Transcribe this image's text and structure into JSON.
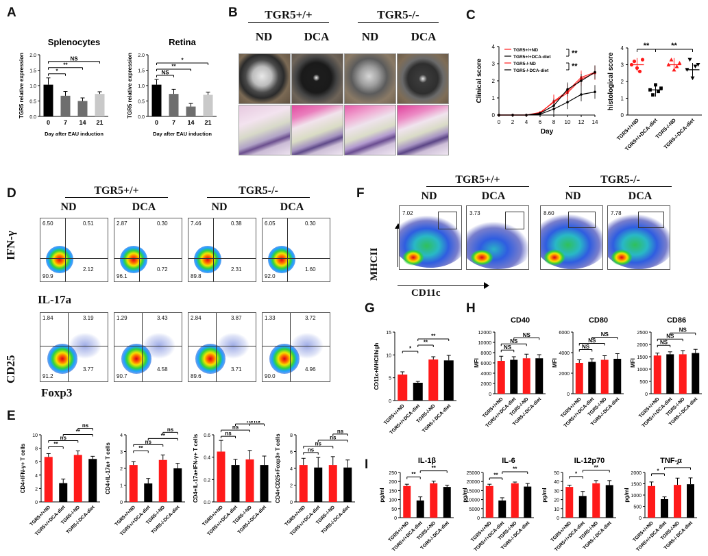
{
  "panel_labels": {
    "a": "A",
    "b": "B",
    "c": "C",
    "d": "D",
    "e": "E",
    "f": "F",
    "g": "G",
    "h": "H",
    "i": "I"
  },
  "genotypes": {
    "wt": "TGR5+/+",
    "ko": "TGR5-/-"
  },
  "treat": {
    "nd": "ND",
    "dca": "DCA"
  },
  "panelD": {
    "ylabel1": "IFN-γ",
    "xlabel1": "IL-17a",
    "ylabel2": "CD25",
    "xlabel2": "Foxp3",
    "row1": [
      {
        "ul": "6.50",
        "ur": "0.51",
        "ll": "90.9",
        "lr": "2.12"
      },
      {
        "ul": "2.87",
        "ur": "0.30",
        "ll": "96.1",
        "lr": "0.72"
      },
      {
        "ul": "7.46",
        "ur": "0.38",
        "ll": "89.8",
        "lr": "2.31"
      },
      {
        "ul": "6.05",
        "ur": "0.30",
        "ll": "92.0",
        "lr": "1.60"
      }
    ],
    "row2": [
      {
        "ul": "1.84",
        "ur": "3.19",
        "ll": "91.2",
        "lr": "3.77"
      },
      {
        "ul": "1.29",
        "ur": "3.43",
        "ll": "90.7",
        "lr": "4.58"
      },
      {
        "ul": "2.84",
        "ur": "3.87",
        "ll": "89.6",
        "lr": "3.71"
      },
      {
        "ul": "1.33",
        "ur": "3.72",
        "ll": "90.0",
        "lr": "4.96"
      }
    ]
  },
  "panelF": {
    "ylabel": "MHCII",
    "xlabel": "CD11c",
    "gates": [
      "7.02",
      "3.73",
      "8.60",
      "7.78"
    ]
  },
  "colors": {
    "wt": "#ff1a1a",
    "ko": "#000000",
    "bar_grey": "#c9c9c9",
    "bar_dark": "#6e6e6e"
  },
  "chart_data": [
    {
      "id": "A1",
      "type": "bar",
      "title": "Splenocytes",
      "ylabel": "TGR5 relative expression",
      "xlabel": "Day after EAU induction",
      "categories": [
        "0",
        "7",
        "14",
        "21"
      ],
      "values": [
        1.03,
        0.67,
        0.5,
        0.73
      ],
      "errors": [
        0.22,
        0.14,
        0.1,
        0.07
      ],
      "ylim": [
        0,
        2.0
      ],
      "yticks": [
        "0.0",
        "0.5",
        "1.0",
        "1.5",
        "2.0"
      ],
      "colors": [
        "#000000",
        "#6e6e6e",
        "#6e6e6e",
        "#c9c9c9"
      ],
      "sig": [
        {
          "a": 0,
          "b": 1,
          "label": "*"
        },
        {
          "a": 0,
          "b": 2,
          "label": "**"
        },
        {
          "a": 0,
          "b": 3,
          "label": "NS"
        }
      ]
    },
    {
      "id": "A2",
      "type": "bar",
      "title": "Retina",
      "ylabel": "TGR5 relative expression",
      "xlabel": "Day after EAU induction",
      "categories": [
        "0",
        "7",
        "14",
        "21"
      ],
      "values": [
        1.03,
        0.73,
        0.32,
        0.7
      ],
      "errors": [
        0.17,
        0.15,
        0.1,
        0.09
      ],
      "ylim": [
        0,
        2.0
      ],
      "yticks": [
        "0.0",
        "0.5",
        "1.0",
        "1.5",
        "2.0"
      ],
      "colors": [
        "#000000",
        "#6e6e6e",
        "#6e6e6e",
        "#c9c9c9"
      ],
      "sig": [
        {
          "a": 0,
          "b": 1,
          "label": "NS"
        },
        {
          "a": 0,
          "b": 2,
          "label": "**"
        },
        {
          "a": 0,
          "b": 3,
          "label": "*"
        }
      ]
    },
    {
      "id": "C1",
      "type": "line",
      "ylabel": "Clinical score",
      "xlabel": "Day",
      "x": [
        0,
        2,
        4,
        6,
        8,
        10,
        12,
        14
      ],
      "xticks": [
        "0",
        "2",
        "4",
        "6",
        "8",
        "10",
        "12",
        "14"
      ],
      "ylim": [
        0,
        4
      ],
      "yticks": [
        "0",
        "1",
        "2",
        "3",
        "4"
      ],
      "series": [
        {
          "name": "TGR5+/+ND",
          "color": "#ff1a1a",
          "values": [
            0,
            0,
            0,
            0.1,
            0.8,
            1.4,
            2.2,
            2.5
          ]
        },
        {
          "name": "TGR5+/+DCA-diet",
          "color": "#000000",
          "values": [
            0,
            0,
            0,
            0.05,
            0.35,
            0.75,
            1.2,
            1.35
          ]
        },
        {
          "name": "TGR5-/-ND",
          "color": "#ff1a1a",
          "values": [
            0,
            0,
            0,
            0.15,
            0.75,
            1.3,
            2.1,
            2.45
          ]
        },
        {
          "name": "TGR5-/-DCA-diet",
          "color": "#000000",
          "values": [
            0,
            0,
            0,
            0.1,
            0.55,
            1.5,
            2.0,
            2.5
          ]
        }
      ],
      "legend": [
        "TGR5+/+ND",
        "TGR5+/+DCA-diet",
        "TGR5-/-ND",
        "TGR5-/-DCA-diet"
      ],
      "sig": [
        "**",
        "**"
      ]
    },
    {
      "id": "C2",
      "type": "scatter",
      "ylabel": "histological score",
      "categories": [
        "TGR5+/+ND",
        "TGR5+/+DCA-diet",
        "TGR5-/-ND",
        "TGR5-/-DCA-diet"
      ],
      "ylim": [
        0,
        4
      ],
      "yticks": [
        "0",
        "1",
        "2",
        "3",
        "4"
      ],
      "colors": [
        "#ff1a1a",
        "#000000",
        "#ff1a1a",
        "#000000"
      ],
      "points": [
        [
          3.0,
          3.2,
          2.8,
          2.6,
          3.3
        ],
        [
          1.5,
          1.2,
          1.8,
          1.4,
          1.6
        ],
        [
          3.0,
          3.3,
          2.7,
          2.9,
          3.1
        ],
        [
          2.7,
          3.3,
          2.2,
          2.9,
          3.0
        ]
      ],
      "means": [
        3.0,
        1.5,
        3.0,
        2.7
      ],
      "sig": [
        {
          "a": 0,
          "b": 1,
          "label": "**"
        },
        {
          "a": 1,
          "b": 3,
          "label": "**"
        }
      ]
    },
    {
      "id": "E1",
      "type": "bar",
      "ylabel": "CD4+IFN-γ+ T cells",
      "categories": [
        "TGR5+/+ND",
        "TGR5+/+DCA-diet",
        "TGR5-/-ND",
        "TGR5-/-DCA-diet"
      ],
      "values": [
        6.7,
        2.8,
        7.0,
        6.4
      ],
      "errors": [
        0.5,
        0.6,
        0.6,
        0.4
      ],
      "ylim": [
        0,
        10
      ],
      "yticks": [
        "0",
        "2",
        "4",
        "6",
        "8",
        "10"
      ],
      "colors": [
        "#ff1a1a",
        "#000000",
        "#ff1a1a",
        "#000000"
      ],
      "sig": [
        {
          "a": 0,
          "b": 1,
          "label": "**"
        },
        {
          "a": 0,
          "b": 2,
          "label": "ns"
        },
        {
          "a": 1,
          "b": 3,
          "label": "**"
        },
        {
          "a": 2,
          "b": 3,
          "label": "ns"
        }
      ]
    },
    {
      "id": "E2",
      "type": "bar",
      "ylabel": "CD4+IL-17a+ T cells",
      "categories": [
        "TGR5+/+ND",
        "TGR5+/+DCA-diet",
        "TGR5-/-ND",
        "TGR5-/-DCA-diet"
      ],
      "values": [
        2.2,
        1.1,
        2.5,
        2.0
      ],
      "errors": [
        0.2,
        0.3,
        0.3,
        0.3
      ],
      "ylim": [
        0,
        4
      ],
      "yticks": [
        "0",
        "1",
        "2",
        "3",
        "4"
      ],
      "colors": [
        "#ff1a1a",
        "#000000",
        "#ff1a1a",
        "#000000"
      ],
      "sig": [
        {
          "a": 0,
          "b": 1,
          "label": "**"
        },
        {
          "a": 0,
          "b": 2,
          "label": "ns"
        },
        {
          "a": 1,
          "b": 3,
          "label": "**"
        },
        {
          "a": 2,
          "b": 3,
          "label": "ns"
        }
      ]
    },
    {
      "id": "E3",
      "type": "bar",
      "ylabel": "CD4+IL-17a+IFN-γ+ T cells",
      "categories": [
        "TGR5+/+ND",
        "TGR5+/+DCA-diet",
        "TGR5-/-ND",
        "TGR5-/-DCA-diet"
      ],
      "values": [
        0.45,
        0.33,
        0.38,
        0.33
      ],
      "errors": [
        0.1,
        0.05,
        0.08,
        0.08
      ],
      "ylim": [
        0,
        0.6
      ],
      "yticks": [
        "0.0",
        "0.2",
        "0.4",
        "0.6"
      ],
      "colors": [
        "#ff1a1a",
        "#000000",
        "#ff1a1a",
        "#000000"
      ],
      "sig": [
        {
          "a": 0,
          "b": 1,
          "label": "ns"
        },
        {
          "a": 0,
          "b": 2,
          "label": "ns"
        },
        {
          "a": 1,
          "b": 3,
          "label": "ns"
        },
        {
          "a": 2,
          "b": 3,
          "label": "ns"
        }
      ]
    },
    {
      "id": "E4",
      "type": "bar",
      "ylabel": "CD4+CD25+Foxp3+ T cells",
      "categories": [
        "TGR5+/+ND",
        "TGR5+/+DCA-diet",
        "TGR5-/-ND",
        "TGR5-/-DCA-diet"
      ],
      "values": [
        4.4,
        4.1,
        4.4,
        4.1
      ],
      "errors": [
        0.8,
        1.2,
        1.0,
        0.9
      ],
      "ylim": [
        0,
        8
      ],
      "yticks": [
        "0",
        "2",
        "4",
        "6",
        "8"
      ],
      "colors": [
        "#ff1a1a",
        "#000000",
        "#ff1a1a",
        "#000000"
      ],
      "sig": [
        {
          "a": 0,
          "b": 1,
          "label": "ns"
        },
        {
          "a": 0,
          "b": 2,
          "label": "ns"
        },
        {
          "a": 1,
          "b": 3,
          "label": "ns"
        },
        {
          "a": 2,
          "b": 3,
          "label": "ns"
        }
      ]
    },
    {
      "id": "G",
      "type": "bar",
      "ylabel": "CD11c+MHCIIhigh",
      "categories": [
        "TGR5+/+ND",
        "TGR5+/+DCA-diet",
        "TGR5-/-ND",
        "TGR5-/-DCA-diet"
      ],
      "values": [
        5.7,
        3.9,
        9.0,
        8.8
      ],
      "errors": [
        0.6,
        0.3,
        0.6,
        1.1
      ],
      "ylim": [
        0,
        15
      ],
      "yticks": [
        "0",
        "5",
        "10",
        "15"
      ],
      "colors": [
        "#ff1a1a",
        "#000000",
        "#ff1a1a",
        "#000000"
      ],
      "sig": [
        {
          "a": 0,
          "b": 1,
          "label": "*"
        },
        {
          "a": 1,
          "b": 2,
          "label": "**"
        },
        {
          "a": 1,
          "b": 3,
          "label": "**"
        }
      ]
    },
    {
      "id": "H1",
      "type": "bar",
      "title": "CD40",
      "ylabel": "MFI",
      "categories": [
        "TGR5+/+ND",
        "TGR5+/+DCA-diet",
        "TGR5-/-ND",
        "TGR5-/-DCA-diet"
      ],
      "values": [
        6400,
        6600,
        6900,
        6900
      ],
      "errors": [
        900,
        600,
        800,
        700
      ],
      "ylim": [
        0,
        12000
      ],
      "yticks": [
        "0",
        "2000",
        "4000",
        "6000",
        "8000",
        "10000",
        "12000"
      ],
      "colors": [
        "#ff1a1a",
        "#000000",
        "#ff1a1a",
        "#000000"
      ],
      "sig": [
        {
          "a": 0,
          "b": 1,
          "label": "NS"
        },
        {
          "a": 0,
          "b": 2,
          "label": "NS"
        },
        {
          "a": 1,
          "b": 3,
          "label": "NS"
        }
      ]
    },
    {
      "id": "H2",
      "type": "bar",
      "title": "CD80",
      "ylabel": "MFI",
      "categories": [
        "TGR5+/+ND",
        "TGR5+/+DCA-diet",
        "TGR5-/-ND",
        "TGR5-/-DCA-diet"
      ],
      "values": [
        3000,
        3100,
        3300,
        3400
      ],
      "errors": [
        300,
        300,
        400,
        500
      ],
      "ylim": [
        0,
        6000
      ],
      "yticks": [
        "0",
        "2000",
        "4000",
        "6000"
      ],
      "colors": [
        "#ff1a1a",
        "#000000",
        "#ff1a1a",
        "#000000"
      ],
      "sig": [
        {
          "a": 0,
          "b": 1,
          "label": "NS"
        },
        {
          "a": 0,
          "b": 2,
          "label": "NS"
        },
        {
          "a": 1,
          "b": 3,
          "label": "NS"
        }
      ]
    },
    {
      "id": "H3",
      "type": "bar",
      "title": "CD86",
      "ylabel": "MFI",
      "categories": [
        "TGR5+/+ND",
        "TGR5+/+DCA-diet",
        "TGR5-/-ND",
        "TGR5-/-DCA-diet"
      ],
      "values": [
        1550,
        1600,
        1600,
        1650
      ],
      "errors": [
        100,
        100,
        150,
        150
      ],
      "ylim": [
        0,
        2500
      ],
      "yticks": [
        "0",
        "500",
        "1000",
        "1500",
        "2000",
        "2500"
      ],
      "colors": [
        "#ff1a1a",
        "#000000",
        "#ff1a1a",
        "#000000"
      ],
      "sig": [
        {
          "a": 0,
          "b": 1,
          "label": "NS"
        },
        {
          "a": 0,
          "b": 2,
          "label": "NS"
        },
        {
          "a": 1,
          "b": 3,
          "label": "NS"
        }
      ]
    },
    {
      "id": "I1",
      "type": "bar",
      "title": "IL-1β",
      "ylabel": "pg/ml",
      "categories": [
        "TGR5+/+ND",
        "TGR5+/+DCA-diet",
        "TGR5-/-ND",
        "TGR5-/-DCA-diet"
      ],
      "values": [
        175,
        95,
        190,
        170
      ],
      "errors": [
        10,
        20,
        12,
        10
      ],
      "ylim": [
        0,
        250
      ],
      "yticks": [
        "0",
        "50",
        "100",
        "150",
        "200",
        "250"
      ],
      "colors": [
        "#ff1a1a",
        "#000000",
        "#ff1a1a",
        "#000000"
      ],
      "sig": [
        {
          "a": 0,
          "b": 1,
          "label": "**"
        },
        {
          "a": 1,
          "b": 3,
          "label": "**"
        }
      ]
    },
    {
      "id": "I2",
      "type": "bar",
      "title": "IL-6",
      "ylabel": "pg/ml",
      "categories": [
        "TGR5+/+ND",
        "TGR5+/+DCA-diet",
        "TGR5-/-ND",
        "TGR5-/-DCA-diet"
      ],
      "values": [
        17500,
        9500,
        19000,
        17200
      ],
      "errors": [
        1000,
        1500,
        700,
        1700
      ],
      "ylim": [
        0,
        25000
      ],
      "yticks": [
        "0",
        "5000",
        "10000",
        "15000",
        "20000",
        "25000"
      ],
      "colors": [
        "#ff1a1a",
        "#000000",
        "#ff1a1a",
        "#000000"
      ],
      "sig": [
        {
          "a": 0,
          "b": 1,
          "label": "**"
        },
        {
          "a": 1,
          "b": 3,
          "label": "**"
        }
      ]
    },
    {
      "id": "I3",
      "type": "bar",
      "title": "IL-12p70",
      "ylabel": "pg/ml",
      "categories": [
        "TGR5+/+ND",
        "TGR5+/+DCA-diet",
        "TGR5-/-ND",
        "TGR5-/-DCA-diet"
      ],
      "values": [
        34,
        24,
        38,
        36
      ],
      "errors": [
        2,
        5,
        3,
        5
      ],
      "ylim": [
        0,
        50
      ],
      "yticks": [
        "0",
        "10",
        "20",
        "30",
        "40",
        "50"
      ],
      "colors": [
        "#ff1a1a",
        "#000000",
        "#ff1a1a",
        "#000000"
      ],
      "sig": [
        {
          "a": 0,
          "b": 1,
          "label": "*"
        },
        {
          "a": 1,
          "b": 3,
          "label": "**"
        }
      ]
    },
    {
      "id": "I4",
      "type": "bar",
      "title": "TNF-α",
      "ylabel": "pg/ml",
      "categories": [
        "TGR5+/+ND",
        "TGR5+/+DCA-diet",
        "TGR5-/-ND",
        "TGR5-/-DCA-diet"
      ],
      "values": [
        1400,
        820,
        1450,
        1480
      ],
      "errors": [
        180,
        100,
        300,
        280
      ],
      "ylim": [
        0,
        2000
      ],
      "yticks": [
        "0",
        "500",
        "1000",
        "1500",
        "2000"
      ],
      "colors": [
        "#ff1a1a",
        "#000000",
        "#ff1a1a",
        "#000000"
      ],
      "sig": [
        {
          "a": 0,
          "b": 1,
          "label": "*"
        },
        {
          "a": 1,
          "b": 3,
          "label": "*"
        }
      ]
    }
  ]
}
